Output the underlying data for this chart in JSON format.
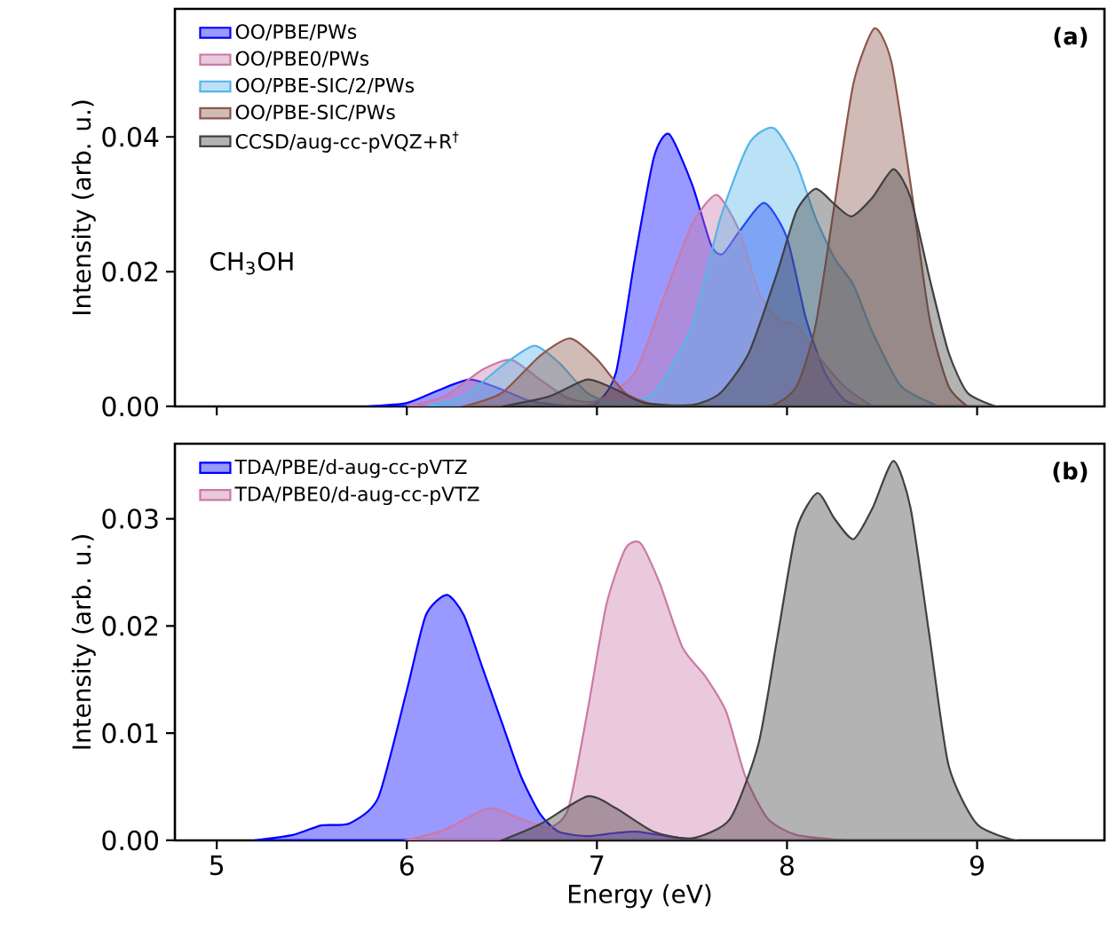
{
  "chart_data": [
    {
      "type": "area",
      "ylabel": "Intensity (arb. u.)",
      "annotations": [
        "(a)",
        "CH$_{3}$OH"
      ],
      "legend": "top left",
      "tick_labels": "y",
      "xlim": [
        4.78,
        9.67
      ],
      "ylim": [
        0,
        0.059
      ],
      "xticks": [
        5,
        6,
        7,
        8,
        9
      ],
      "yticks": [
        {
          "value": 0,
          "label": "0.00"
        },
        {
          "value": 0.02,
          "label": "0.02"
        },
        {
          "value": 0.04,
          "label": "0.04"
        }
      ],
      "series": [
        {
          "name": "OO/PBE/PWs",
          "color": "#0000ff",
          "x": [
            5.8,
            6.0,
            6.15,
            6.33,
            6.5,
            6.65,
            6.8,
            6.9,
            7.0,
            7.1,
            7.2,
            7.3,
            7.38,
            7.5,
            7.6,
            7.66,
            7.75,
            7.88,
            8.0,
            8.1,
            8.2,
            8.3,
            8.4
          ],
          "values": [
            0,
            0.0005,
            0.0022,
            0.004,
            0.0025,
            0.0008,
            0.0002,
            0.0001,
            0.0005,
            0.005,
            0.022,
            0.037,
            0.0404,
            0.033,
            0.024,
            0.0226,
            0.026,
            0.0302,
            0.025,
            0.013,
            0.005,
            0.001,
            0
          ]
        },
        {
          "name": "OO/PBE0/PWs",
          "color": "#cc79a7",
          "x": [
            6.0,
            6.2,
            6.4,
            6.55,
            6.7,
            6.85,
            7.0,
            7.2,
            7.35,
            7.5,
            7.63,
            7.75,
            7.85,
            7.95,
            8.05,
            8.15,
            8.3,
            8.45
          ],
          "values": [
            0,
            0.0015,
            0.0055,
            0.0069,
            0.004,
            0.0012,
            0.0008,
            0.005,
            0.016,
            0.027,
            0.0314,
            0.026,
            0.017,
            0.013,
            0.012,
            0.008,
            0.003,
            0
          ]
        },
        {
          "name": "OO/PBE-SIC/2/PWs",
          "color": "#56b4e9",
          "x": [
            6.1,
            6.3,
            6.5,
            6.67,
            6.8,
            6.95,
            7.1,
            7.3,
            7.5,
            7.65,
            7.8,
            7.93,
            8.05,
            8.15,
            8.25,
            8.35,
            8.45,
            8.6,
            8.8
          ],
          "values": [
            0,
            0.0015,
            0.006,
            0.009,
            0.0065,
            0.002,
            0.0005,
            0.002,
            0.012,
            0.028,
            0.039,
            0.0413,
            0.036,
            0.028,
            0.022,
            0.018,
            0.011,
            0.003,
            0
          ]
        },
        {
          "name": "OO/PBE-SIC/PWs",
          "color": "#8c564b",
          "x": [
            6.3,
            6.5,
            6.7,
            6.86,
            7.0,
            7.15,
            7.3,
            7.5,
            7.9,
            8.05,
            8.15,
            8.25,
            8.35,
            8.46,
            8.55,
            8.65,
            8.75,
            8.85,
            8.95
          ],
          "values": [
            0,
            0.002,
            0.0075,
            0.0101,
            0.007,
            0.002,
            0.0003,
            0,
            0,
            0.003,
            0.012,
            0.03,
            0.048,
            0.0561,
            0.051,
            0.033,
            0.013,
            0.003,
            0
          ]
        },
        {
          "name": "CCSD/aug-cc-pVQZ+R$^{†}$",
          "color": "#404040",
          "x": [
            6.5,
            6.75,
            6.95,
            7.1,
            7.25,
            7.5,
            7.65,
            7.8,
            7.95,
            8.05,
            8.15,
            8.25,
            8.34,
            8.45,
            8.56,
            8.65,
            8.75,
            8.85,
            8.95,
            9.1
          ],
          "values": [
            0,
            0.0015,
            0.004,
            0.0025,
            0.0005,
            0.0002,
            0.002,
            0.008,
            0.02,
            0.029,
            0.0323,
            0.03,
            0.0282,
            0.031,
            0.0352,
            0.031,
            0.019,
            0.008,
            0.002,
            0
          ]
        }
      ]
    },
    {
      "type": "area",
      "xlabel": "Energy (eV)",
      "ylabel": "Intensity (arb. u.)",
      "annotations": [
        "(b)"
      ],
      "legend": "top left",
      "xlim": [
        4.78,
        9.67
      ],
      "ylim": [
        0,
        0.037
      ],
      "xticks": [
        5,
        6,
        7,
        8,
        9
      ],
      "yticks": [
        {
          "value": 0,
          "label": "0.00"
        },
        {
          "value": 0.01,
          "label": "0.01"
        },
        {
          "value": 0.02,
          "label": "0.02"
        },
        {
          "value": 0.03,
          "label": "0.03"
        }
      ],
      "series": [
        {
          "name": "TDA/PBE/d-aug-cc-pVTZ",
          "color": "#0000ff",
          "x": [
            5.2,
            5.4,
            5.55,
            5.7,
            5.85,
            6.0,
            6.1,
            6.21,
            6.3,
            6.4,
            6.5,
            6.6,
            6.7,
            6.8,
            6.95,
            7.1,
            7.22,
            7.4,
            7.6
          ],
          "values": [
            0,
            0.0005,
            0.0014,
            0.0016,
            0.004,
            0.014,
            0.021,
            0.0229,
            0.021,
            0.016,
            0.011,
            0.006,
            0.0025,
            0.0008,
            0.0004,
            0.0007,
            0.0008,
            0.0003,
            0
          ]
        },
        {
          "name": "TDA/PBE0/d-aug-cc-pVTZ",
          "color": "#cc79a7",
          "x": [
            6.0,
            6.2,
            6.43,
            6.6,
            6.75,
            6.85,
            6.95,
            7.05,
            7.15,
            7.23,
            7.33,
            7.45,
            7.57,
            7.68,
            7.78,
            7.9,
            8.05,
            8.3
          ],
          "values": [
            0,
            0.001,
            0.003,
            0.002,
            0.0012,
            0.003,
            0.012,
            0.022,
            0.0272,
            0.0277,
            0.024,
            0.018,
            0.0153,
            0.012,
            0.006,
            0.002,
            0.0005,
            0
          ]
        },
        {
          "color": "#404040",
          "x": [
            6.5,
            6.7,
            6.95,
            7.1,
            7.3,
            7.5,
            7.7,
            7.85,
            7.95,
            8.05,
            8.16,
            8.25,
            8.35,
            8.45,
            8.56,
            8.65,
            8.75,
            8.85,
            9.0,
            9.2
          ],
          "values": [
            0,
            0.0015,
            0.0041,
            0.003,
            0.0008,
            0.0002,
            0.002,
            0.009,
            0.019,
            0.029,
            0.0324,
            0.03,
            0.0281,
            0.031,
            0.0354,
            0.031,
            0.019,
            0.007,
            0.0015,
            0
          ]
        }
      ]
    }
  ]
}
